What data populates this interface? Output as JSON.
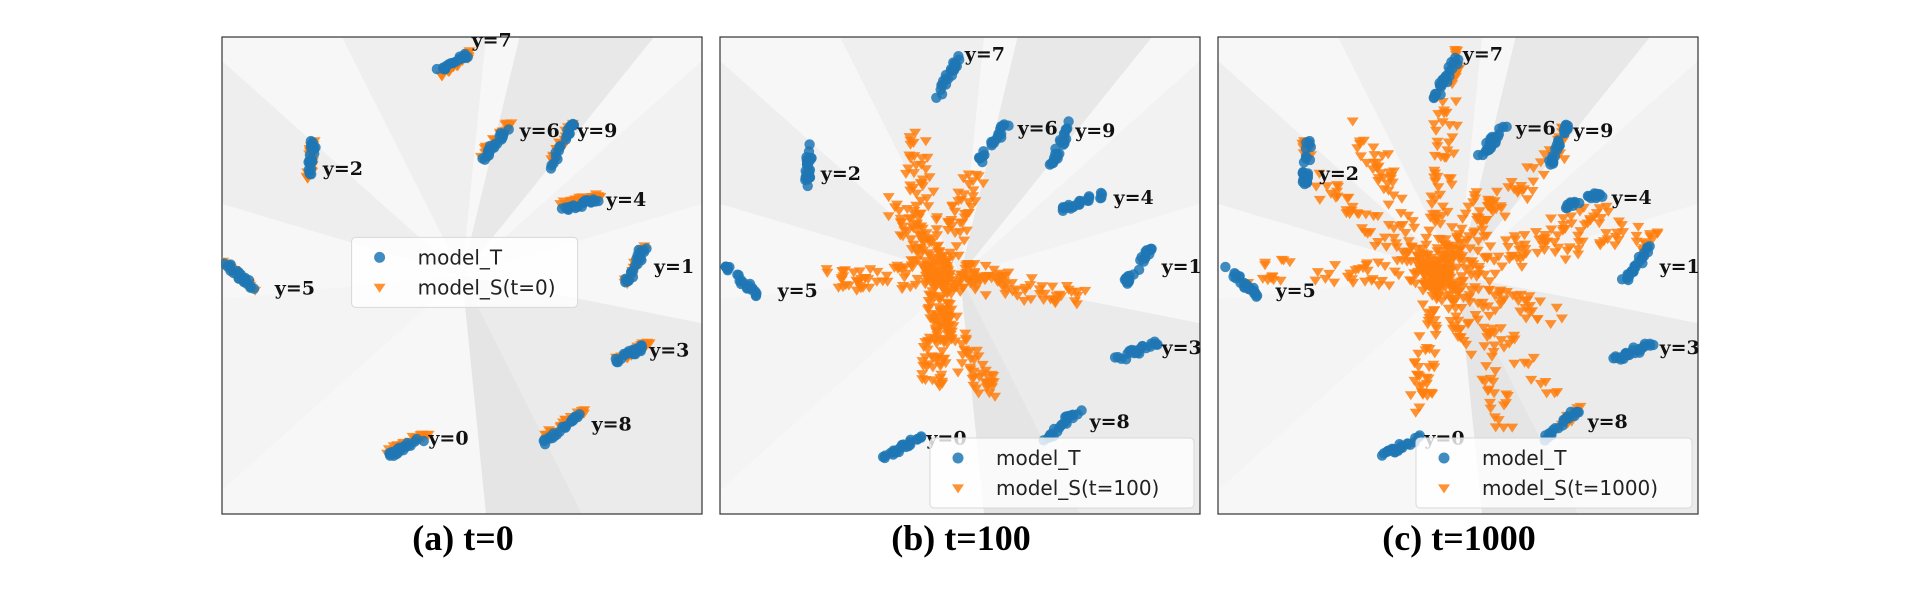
{
  "chart_data": [
    {
      "type": "scatter",
      "caption": "(a) t=0",
      "legend_position": "center",
      "legend": [
        "model_T",
        "model_S(t=0)"
      ],
      "series_colors": {
        "model_T": "#1f77b4",
        "model_S": "#ff7f0e"
      },
      "clusters": [
        {
          "label": "y=7",
          "teacher": [
            [
              0.45,
              0.07
            ],
            [
              0.51,
              0.04
            ]
          ],
          "student": [
            [
              0.46,
              0.08
            ],
            [
              0.52,
              0.03
            ]
          ]
        },
        {
          "label": "y=6",
          "teacher": [
            [
              0.54,
              0.26
            ],
            [
              0.6,
              0.19
            ]
          ],
          "student": [
            [
              0.54,
              0.25
            ],
            [
              0.6,
              0.18
            ]
          ]
        },
        {
          "label": "y=9",
          "teacher": [
            [
              0.69,
              0.27
            ],
            [
              0.73,
              0.18
            ]
          ],
          "student": [
            [
              0.69,
              0.26
            ],
            [
              0.73,
              0.18
            ]
          ]
        },
        {
          "label": "y=2",
          "teacher": [
            [
              0.18,
              0.29
            ],
            [
              0.19,
              0.22
            ]
          ],
          "student": [
            [
              0.18,
              0.3
            ],
            [
              0.19,
              0.22
            ]
          ]
        },
        {
          "label": "y=4",
          "teacher": [
            [
              0.71,
              0.36
            ],
            [
              0.78,
              0.34
            ]
          ],
          "student": [
            [
              0.71,
              0.35
            ],
            [
              0.79,
              0.33
            ]
          ]
        },
        {
          "label": "y=5",
          "teacher": [
            [
              0.01,
              0.48
            ],
            [
              0.07,
              0.53
            ]
          ],
          "student": [
            [
              0.0,
              0.47
            ],
            [
              0.07,
              0.53
            ]
          ]
        },
        {
          "label": "y=1",
          "teacher": [
            [
              0.84,
              0.52
            ],
            [
              0.88,
              0.44
            ]
          ],
          "student": [
            [
              0.84,
              0.52
            ],
            [
              0.88,
              0.44
            ]
          ]
        },
        {
          "label": "y=3",
          "teacher": [
            [
              0.82,
              0.68
            ],
            [
              0.88,
              0.65
            ]
          ],
          "student": [
            [
              0.82,
              0.68
            ],
            [
              0.89,
              0.64
            ]
          ]
        },
        {
          "label": "y=8",
          "teacher": [
            [
              0.67,
              0.85
            ],
            [
              0.75,
              0.79
            ]
          ],
          "student": [
            [
              0.67,
              0.84
            ],
            [
              0.76,
              0.78
            ]
          ]
        },
        {
          "label": "y=0",
          "teacher": [
            [
              0.34,
              0.88
            ],
            [
              0.42,
              0.84
            ]
          ],
          "student": [
            [
              0.34,
              0.87
            ],
            [
              0.43,
              0.83
            ]
          ]
        }
      ]
    },
    {
      "type": "scatter",
      "caption": "(b) t=100",
      "legend_position": "lower right",
      "legend": [
        "model_T",
        "model_S(t=100)"
      ],
      "series_colors": {
        "model_T": "#1f77b4",
        "model_S": "#ff7f0e"
      },
      "clusters": [
        {
          "label": "y=7",
          "teacher": [
            [
              0.45,
              0.13
            ],
            [
              0.5,
              0.04
            ]
          ]
        },
        {
          "label": "y=6",
          "teacher": [
            [
              0.54,
              0.26
            ],
            [
              0.6,
              0.18
            ]
          ]
        },
        {
          "label": "y=9",
          "teacher": [
            [
              0.69,
              0.27
            ],
            [
              0.73,
              0.18
            ]
          ]
        },
        {
          "label": "y=2",
          "teacher": [
            [
              0.18,
              0.31
            ],
            [
              0.19,
              0.22
            ]
          ]
        },
        {
          "label": "y=4",
          "teacher": [
            [
              0.71,
              0.36
            ],
            [
              0.8,
              0.33
            ]
          ]
        },
        {
          "label": "y=5",
          "teacher": [
            [
              0.01,
              0.48
            ],
            [
              0.08,
              0.54
            ]
          ]
        },
        {
          "label": "y=1",
          "teacher": [
            [
              0.84,
              0.52
            ],
            [
              0.9,
              0.44
            ]
          ]
        },
        {
          "label": "y=3",
          "teacher": [
            [
              0.82,
              0.68
            ],
            [
              0.91,
              0.64
            ]
          ]
        },
        {
          "label": "y=8",
          "teacher": [
            [
              0.67,
              0.85
            ],
            [
              0.75,
              0.78
            ]
          ]
        },
        {
          "label": "y=0",
          "teacher": [
            [
              0.34,
              0.88
            ],
            [
              0.42,
              0.84
            ]
          ]
        }
      ],
      "student_spokes": [
        [
          [
            0.45,
            0.5
          ],
          [
            0.4,
            0.2
          ]
        ],
        [
          [
            0.45,
            0.5
          ],
          [
            0.53,
            0.3
          ]
        ],
        [
          [
            0.45,
            0.5
          ],
          [
            0.76,
            0.55
          ]
        ],
        [
          [
            0.45,
            0.5
          ],
          [
            0.22,
            0.51
          ]
        ],
        [
          [
            0.45,
            0.5
          ],
          [
            0.37,
            0.35
          ]
        ],
        [
          [
            0.45,
            0.5
          ],
          [
            0.46,
            0.58
          ]
        ],
        [
          [
            0.46,
            0.58
          ],
          [
            0.56,
            0.75
          ]
        ],
        [
          [
            0.46,
            0.58
          ],
          [
            0.44,
            0.72
          ]
        ],
        [
          [
            0.45,
            0.5
          ],
          [
            0.6,
            0.5
          ]
        ]
      ]
    },
    {
      "type": "scatter",
      "caption": "(c) t=1000",
      "legend_position": "lower right",
      "legend": [
        "model_T",
        "model_S(t=1000)"
      ],
      "series_colors": {
        "model_T": "#1f77b4",
        "model_S": "#ff7f0e"
      },
      "clusters": [
        {
          "label": "y=7",
          "teacher": [
            [
              0.45,
              0.13
            ],
            [
              0.5,
              0.04
            ]
          ],
          "student": [
            [
              0.49,
              0.12
            ],
            [
              0.5,
              0.03
            ]
          ]
        },
        {
          "label": "y=6",
          "teacher": [
            [
              0.54,
              0.26
            ],
            [
              0.6,
              0.18
            ]
          ]
        },
        {
          "label": "y=9",
          "teacher": [
            [
              0.69,
              0.27
            ],
            [
              0.73,
              0.18
            ]
          ],
          "student": [
            [
              0.71,
              0.22
            ],
            [
              0.72,
              0.18
            ]
          ]
        },
        {
          "label": "y=2",
          "teacher": [
            [
              0.18,
              0.31
            ],
            [
              0.19,
              0.22
            ]
          ],
          "student": [
            [
              0.18,
              0.22
            ],
            [
              0.19,
              0.25
            ]
          ]
        },
        {
          "label": "y=4",
          "teacher": [
            [
              0.71,
              0.36
            ],
            [
              0.8,
              0.33
            ]
          ]
        },
        {
          "label": "y=5",
          "teacher": [
            [
              0.01,
              0.48
            ],
            [
              0.08,
              0.54
            ]
          ]
        },
        {
          "label": "y=1",
          "teacher": [
            [
              0.84,
              0.52
            ],
            [
              0.9,
              0.44
            ]
          ],
          "student": [
            [
              0.88,
              0.45
            ],
            [
              0.92,
              0.4
            ]
          ]
        },
        {
          "label": "y=3",
          "teacher": [
            [
              0.82,
              0.68
            ],
            [
              0.91,
              0.64
            ]
          ]
        },
        {
          "label": "y=8",
          "teacher": [
            [
              0.67,
              0.85
            ],
            [
              0.75,
              0.78
            ]
          ],
          "student": [
            [
              0.72,
              0.81
            ],
            [
              0.76,
              0.77
            ]
          ]
        },
        {
          "label": "y=0",
          "teacher": [
            [
              0.34,
              0.88
            ],
            [
              0.42,
              0.84
            ]
          ]
        }
      ],
      "student_spokes": [
        [
          [
            0.45,
            0.5
          ],
          [
            0.48,
            0.1
          ]
        ],
        [
          [
            0.45,
            0.5
          ],
          [
            0.3,
            0.2
          ]
        ],
        [
          [
            0.45,
            0.5
          ],
          [
            0.57,
            0.33
          ]
        ],
        [
          [
            0.45,
            0.5
          ],
          [
            0.7,
            0.24
          ]
        ],
        [
          [
            0.45,
            0.5
          ],
          [
            0.2,
            0.3
          ]
        ],
        [
          [
            0.45,
            0.5
          ],
          [
            0.82,
            0.36
          ]
        ],
        [
          [
            0.45,
            0.5
          ],
          [
            0.08,
            0.49
          ]
        ],
        [
          [
            0.45,
            0.5
          ],
          [
            0.9,
            0.4
          ]
        ],
        [
          [
            0.45,
            0.5
          ],
          [
            0.7,
            0.58
          ]
        ],
        [
          [
            0.45,
            0.5
          ],
          [
            0.42,
            0.78
          ]
        ],
        [
          [
            0.45,
            0.5
          ],
          [
            0.6,
            0.8
          ]
        ],
        [
          [
            0.45,
            0.5
          ],
          [
            0.7,
            0.74
          ]
        ]
      ]
    }
  ]
}
